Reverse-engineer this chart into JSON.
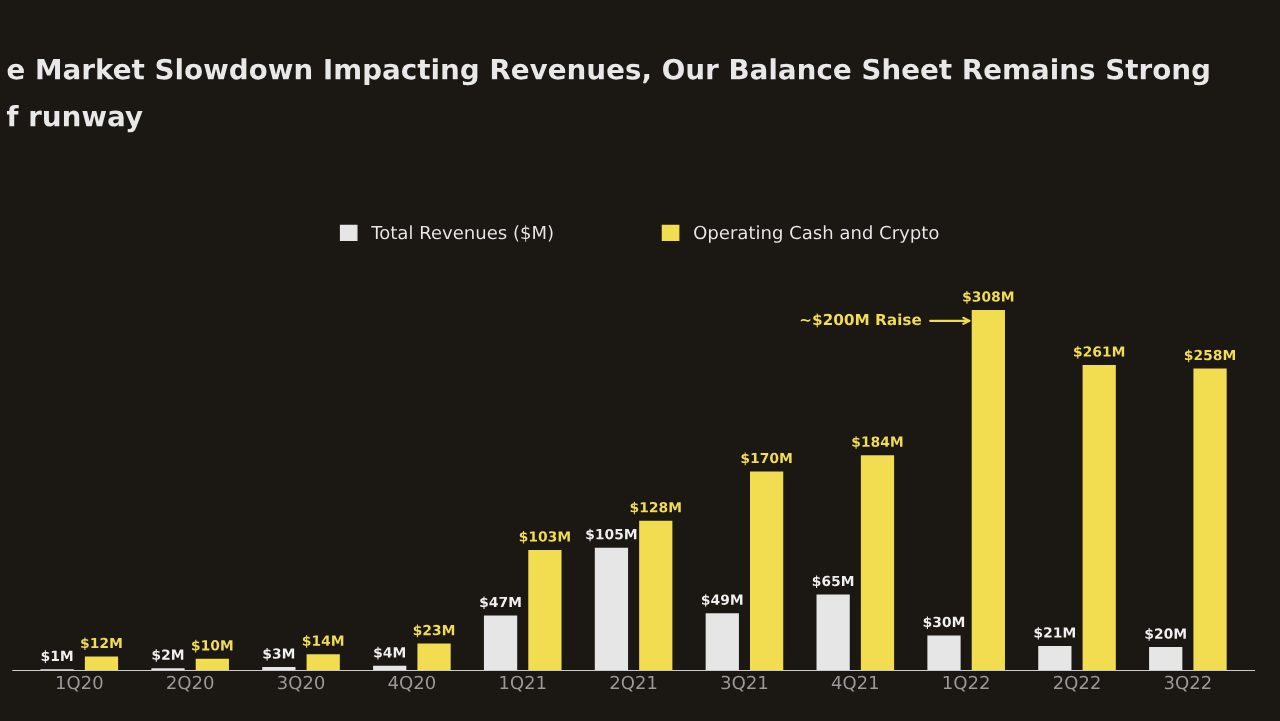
{
  "chart_data": {
    "type": "bar",
    "title": "e Market Slowdown Impacting Revenues, Our Balance Sheet Remains Strong",
    "subtitle": "f runway",
    "categories": [
      "1Q20",
      "2Q20",
      "3Q20",
      "4Q20",
      "1Q21",
      "2Q21",
      "3Q21",
      "4Q21",
      "1Q22",
      "2Q22",
      "3Q22"
    ],
    "series": [
      {
        "name": "Total Revenues ($M)",
        "color": "#e6e6e6",
        "values": [
          1,
          2,
          3,
          4,
          47,
          105,
          49,
          65,
          30,
          21,
          20
        ],
        "value_labels": [
          "$1M",
          "$2M",
          "$3M",
          "$4M",
          "$47M",
          "$105M",
          "$49M",
          "$65M",
          "$30M",
          "$21M",
          "$20M"
        ]
      },
      {
        "name": "Operating Cash and Crypto",
        "color": "#f2dc50",
        "values": [
          12,
          10,
          14,
          23,
          103,
          128,
          170,
          184,
          308,
          261,
          258
        ],
        "value_labels": [
          "$12M",
          "$10M",
          "$14M",
          "$23M",
          "$103M",
          "$128M",
          "$170M",
          "$184M",
          "$308M",
          "$261M",
          "$258M"
        ]
      }
    ],
    "annotations": [
      "~$200M Raise"
    ],
    "legend": "top",
    "grid": false
  }
}
